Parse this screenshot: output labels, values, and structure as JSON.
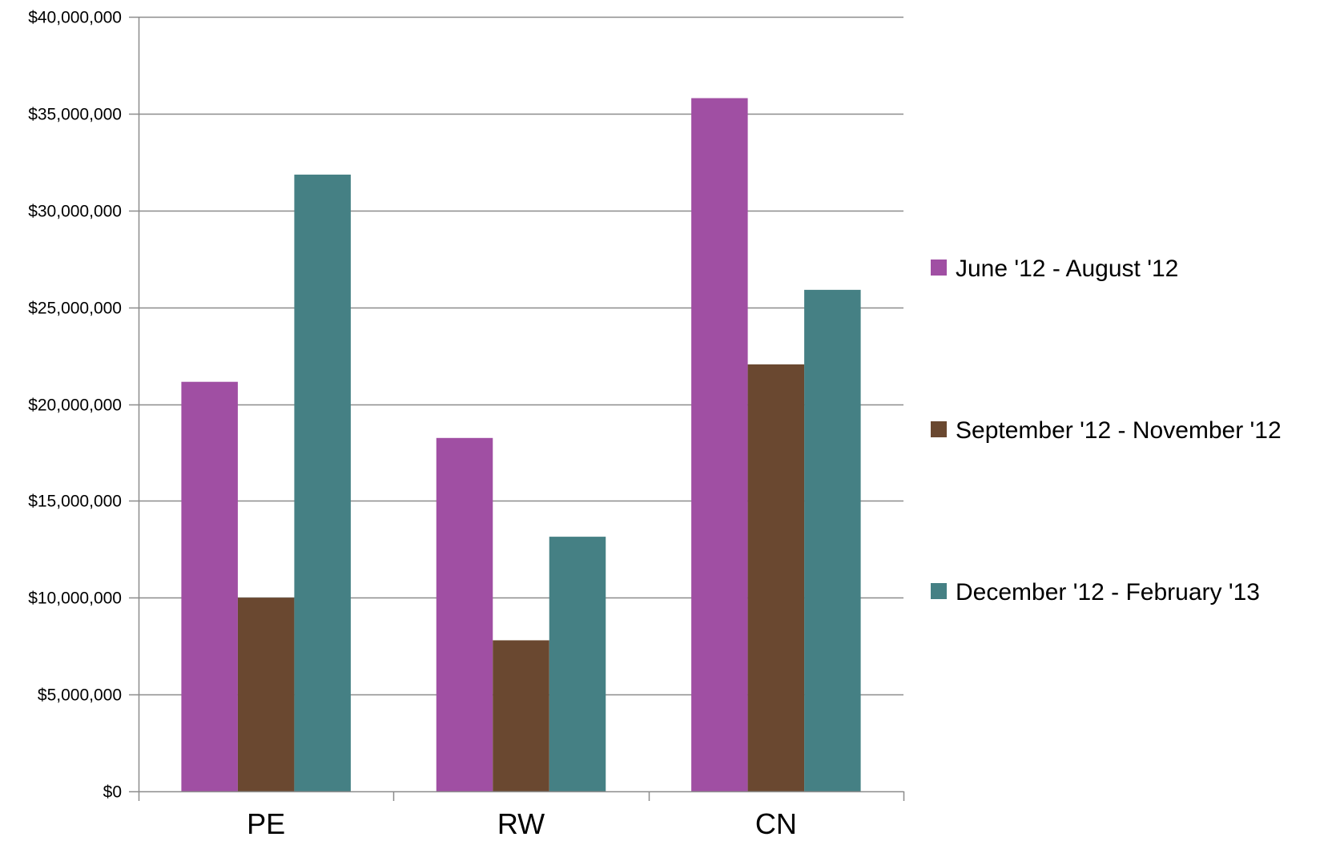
{
  "chart_data": {
    "type": "bar",
    "title": "",
    "xlabel": "",
    "ylabel": "",
    "categories": [
      "PE",
      "RW",
      "CN"
    ],
    "series": [
      {
        "name": "June '12 - August '12",
        "color": "#A04FA3",
        "values": [
          21150000,
          18250000,
          35800000
        ]
      },
      {
        "name": "September '12 - November '12",
        "color": "#6A4830",
        "values": [
          10000000,
          7800000,
          22050000
        ]
      },
      {
        "name": "December '12 - February '13",
        "color": "#458084",
        "values": [
          31850000,
          13150000,
          25900000
        ]
      }
    ],
    "ylim": [
      0,
      40000000
    ],
    "y_ticks": [
      0,
      5000000,
      10000000,
      15000000,
      20000000,
      25000000,
      30000000,
      35000000,
      40000000
    ],
    "y_tick_labels": [
      "$0",
      "$5,000,000",
      "$10,000,000",
      "$15,000,000",
      "$20,000,000",
      "$25,000,000",
      "$30,000,000",
      "$35,000,000",
      "$40,000,000"
    ],
    "grid": true,
    "legend_position": "right",
    "colors": {
      "gridline": "#8C8C8C",
      "axis": "#8C8C8C"
    }
  }
}
